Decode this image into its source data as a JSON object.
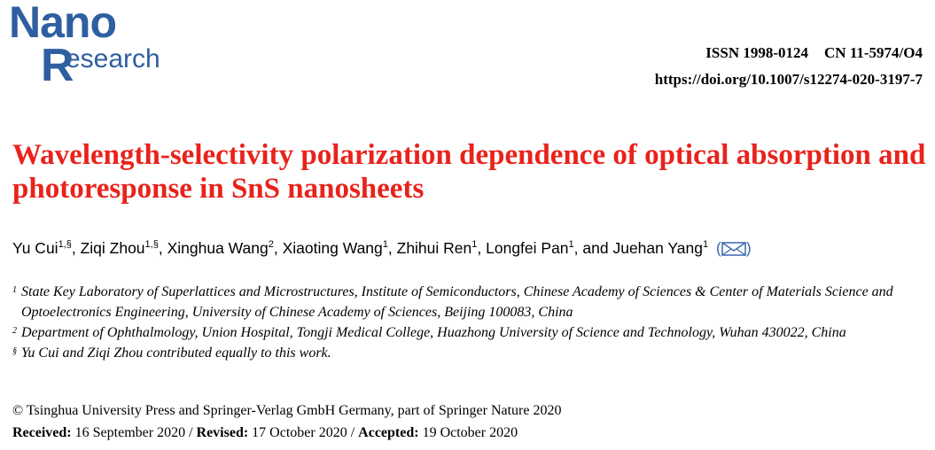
{
  "logo": {
    "line1": "Nano",
    "initial": "R",
    "rest": "esearch"
  },
  "header": {
    "issn": "ISSN 1998-0124",
    "cn": "CN 11-5974/O4",
    "doi": "https://doi.org/10.1007/s12274-020-3197-7"
  },
  "title": "Wavelength-selectivity polarization dependence of optical absorption and photoresponse in SnS nanosheets",
  "authors": [
    {
      "name": "Yu Cui",
      "sup": "1,§",
      "sep": ", "
    },
    {
      "name": "Ziqi Zhou",
      "sup": "1,§",
      "sep": ", "
    },
    {
      "name": "Xinghua Wang",
      "sup": "2",
      "sep": ", "
    },
    {
      "name": "Xiaoting Wang",
      "sup": "1",
      "sep": ", "
    },
    {
      "name": "Zhihui Ren",
      "sup": "1",
      "sep": ", "
    },
    {
      "name": "Longfei Pan",
      "sup": "1",
      "sep": ", and "
    },
    {
      "name": "Juehan Yang",
      "sup": "1",
      "sep": ""
    }
  ],
  "affiliations": [
    {
      "mark": "1",
      "text": "State Key Laboratory of Superlattices and Microstructures, Institute of Semiconductors, Chinese Academy of Sciences & Center of Materials Science and Optoelectronics Engineering, University of Chinese Academy of Sciences, Beijing 100083, China"
    },
    {
      "mark": "2",
      "text": "Department of Ophthalmology, Union Hospital, Tongji Medical College, Huazhong University of Science and Technology, Wuhan 430022, China"
    },
    {
      "mark": "§",
      "text": "Yu Cui and Ziqi Zhou contributed equally to this work."
    }
  ],
  "copyright": "© Tsinghua University Press and Springer-Verlag GmbH Germany, part of Springer Nature 2020",
  "dates": {
    "received_label": "Received:",
    "received": "16 September 2020",
    "revised_label": "Revised:",
    "revised": "17 October 2020",
    "accepted_label": "Accepted:",
    "accepted": "19 October 2020",
    "sep": " / "
  },
  "colors": {
    "title": "#e8231c",
    "logo": "#2f5fa0",
    "mail_icon": "#3a67b0"
  }
}
